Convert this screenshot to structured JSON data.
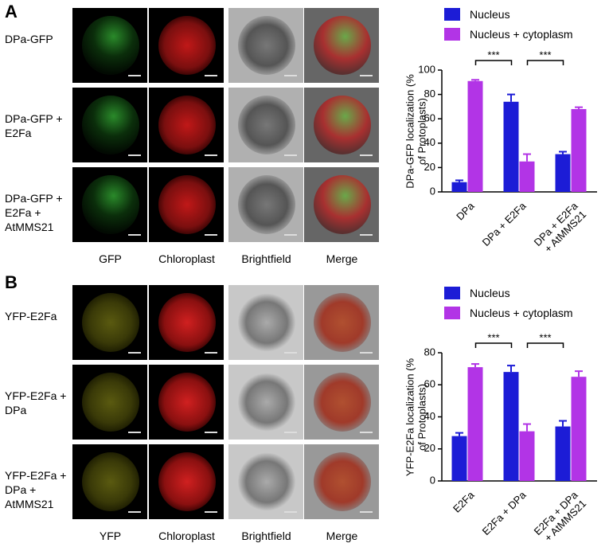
{
  "panels": [
    {
      "label": "A",
      "rows": [
        "DPa-GFP",
        "DPa-GFP + E2Fa",
        "DPa-GFP + E2Fa + AtMMS21"
      ],
      "columns": [
        "GFP",
        "Chloroplast",
        "Brightfield",
        "Merge"
      ]
    },
    {
      "label": "B",
      "rows": [
        "YFP-E2Fa",
        "YFP-E2Fa + DPa",
        "YFP-E2Fa + DPa + AtMMS21"
      ],
      "columns": [
        "YFP",
        "Chloroplast",
        "Brightfield",
        "Merge"
      ]
    }
  ],
  "chart_data": [
    {
      "type": "bar",
      "ylabel": "DPa-GFP localization (% of Protoplasts)",
      "categories": [
        "DPa",
        "DPa + E2Fa",
        "DPa + E2Fa + AtMMS21"
      ],
      "series": [
        {
          "name": "Nucleus",
          "color": "#1c1cd6",
          "values": [
            8,
            74,
            31
          ],
          "errors": [
            1.5,
            6,
            2
          ]
        },
        {
          "name": "Nucleus + cytoplasm",
          "color": "#b234e6",
          "values": [
            91,
            25,
            68
          ],
          "errors": [
            1,
            6,
            1.5
          ]
        }
      ],
      "ylim": [
        0,
        100
      ],
      "yticks": [
        0,
        20,
        40,
        60,
        80,
        100
      ],
      "significance": [
        "***",
        "***"
      ]
    },
    {
      "type": "bar",
      "ylabel": "YFP-E2Fa localization (% of Protoplasts)",
      "categories": [
        "E2Fa",
        "E2Fa + DPa",
        "E2Fa + DPa + AtMMS21"
      ],
      "series": [
        {
          "name": "Nucleus",
          "color": "#1c1cd6",
          "values": [
            28,
            68,
            34
          ],
          "errors": [
            2,
            4,
            3.5
          ]
        },
        {
          "name": "Nucleus + cytoplasm",
          "color": "#b234e6",
          "values": [
            71,
            31,
            65
          ],
          "errors": [
            2,
            4.5,
            3.5
          ]
        }
      ],
      "ylim": [
        0,
        80
      ],
      "yticks": [
        0,
        20,
        40,
        60,
        80
      ],
      "significance": [
        "***",
        "***"
      ]
    }
  ]
}
